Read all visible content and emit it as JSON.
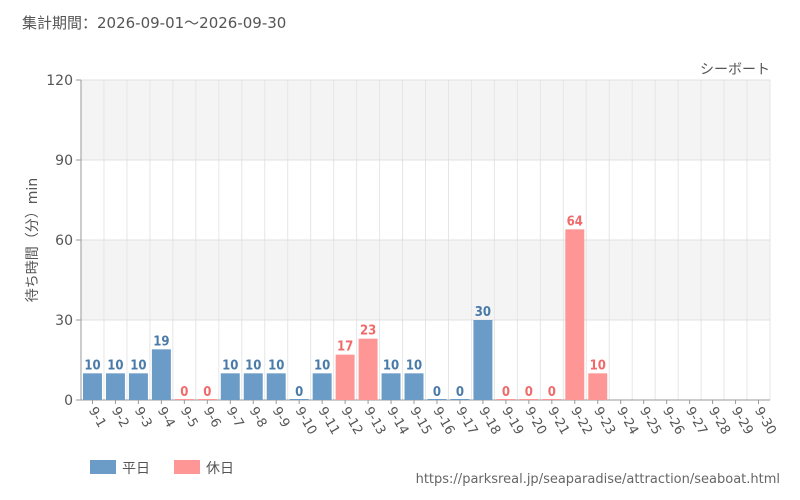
{
  "header": {
    "period": "集計期間：2026-09-01～2026-09-30"
  },
  "footer": {
    "url": "https://parksreal.jp/seaparadise/attraction/seaboat.html"
  },
  "colors": {
    "weekday": "#6b9bc7",
    "holiday": "#ff9696",
    "weekday_label": "#4a7aa8",
    "holiday_label": "#f06a6a"
  },
  "chart_data": {
    "type": "bar",
    "title": "シーボート",
    "ylabel": "待ち時間（分）min",
    "xlabel": "",
    "ylim": [
      0,
      120
    ],
    "yticks": [
      0,
      30,
      60,
      90,
      120
    ],
    "grid": true,
    "legend_position": "bottom-left",
    "legend": [
      {
        "key": "weekday",
        "label": "平日"
      },
      {
        "key": "holiday",
        "label": "休日"
      }
    ],
    "categories": [
      "9-1",
      "9-2",
      "9-3",
      "9-4",
      "9-5",
      "9-6",
      "9-7",
      "9-8",
      "9-9",
      "9-10",
      "9-11",
      "9-12",
      "9-13",
      "9-14",
      "9-15",
      "9-16",
      "9-17",
      "9-18",
      "9-19",
      "9-20",
      "9-21",
      "9-22",
      "9-23",
      "9-24",
      "9-25",
      "9-26",
      "9-27",
      "9-28",
      "9-29",
      "9-30"
    ],
    "values": [
      10,
      10,
      10,
      19,
      0,
      0,
      10,
      10,
      10,
      0,
      10,
      17,
      23,
      10,
      10,
      0,
      0,
      30,
      0,
      0,
      0,
      64,
      10,
      null,
      null,
      null,
      null,
      null,
      null,
      null
    ],
    "day_type": [
      "weekday",
      "weekday",
      "weekday",
      "weekday",
      "holiday",
      "holiday",
      "weekday",
      "weekday",
      "weekday",
      "weekday",
      "weekday",
      "holiday",
      "holiday",
      "weekday",
      "weekday",
      "weekday",
      "weekday",
      "weekday",
      "holiday",
      "holiday",
      "holiday",
      "holiday",
      "holiday",
      "weekday",
      "weekday",
      "holiday",
      "holiday",
      "weekday",
      "weekday",
      "weekday"
    ]
  }
}
